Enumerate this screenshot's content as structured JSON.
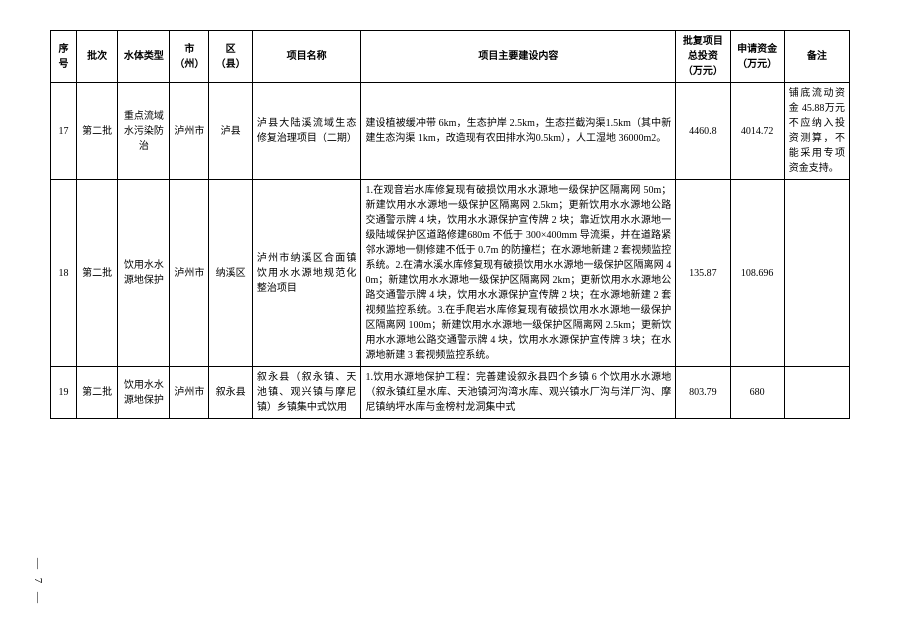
{
  "columns": {
    "c0": "序号",
    "c1": "批次",
    "c2": "水体类型",
    "c3": "市（州）",
    "c4": "区（县）",
    "c5": "项目名称",
    "c6": "项目主要建设内容",
    "c7": "批复项目总投资（万元）",
    "c8": "申请资金（万元）",
    "c9": "备注"
  },
  "rows": [
    {
      "seq": "17",
      "batch": "第二批",
      "water_type": "重点流域水污染防治",
      "city": "泸州市",
      "county": "泸县",
      "name": "泸县大陆溪流域生态修复治理项目（二期）",
      "content": "建设植被缓冲带 6km，生态护岸 2.5km，生态拦截沟渠1.5km（其中新建生态沟渠 1km，改造现有农田排水沟0.5km），人工湿地 36000m2。",
      "invest": "4460.8",
      "apply": "4014.72",
      "remark": "铺底流动资金 45.88万元不应纳入投资测算，不能采用专项资金支持。"
    },
    {
      "seq": "18",
      "batch": "第二批",
      "water_type": "饮用水水源地保护",
      "city": "泸州市",
      "county": "纳溪区",
      "name": "泸州市纳溪区合面镇饮用水水源地规范化整治项目",
      "content": "1.在观音岩水库修复现有破损饮用水水源地一级保护区隔离网 50m；新建饮用水水源地一级保护区隔离网 2.5km；更新饮用水水源地公路交通警示牌 4 块，饮用水水源保护宣传牌 2 块；靠近饮用水水源地一级陆域保护区道路修建680m 不低于 300×400mm 导流渠，并在道路紧邻水源地一侧修建不低于 0.7m 的防撞栏；在水源地新建 2 套视频监控系统。2.在清水溪水库修复现有破损饮用水水源地一级保护区隔离网 40m；新建饮用水水源地一级保护区隔离网 2km；更新饮用水水源地公路交通警示牌 4 块，饮用水水源保护宣传牌 2 块；在水源地新建 2 套视频监控系统。3.在手爬岩水库修复现有破损饮用水水源地一级保护区隔离网 100m；新建饮用水水源地一级保护区隔离网 2.5km；更新饮用水水源地公路交通警示牌 4 块，饮用水水源保护宣传牌 3 块；在水源地新建 3 套视频监控系统。",
      "invest": "135.87",
      "apply": "108.696",
      "remark": ""
    },
    {
      "seq": "19",
      "batch": "第二批",
      "water_type": "饮用水水源地保护",
      "city": "泸州市",
      "county": "叙永县",
      "name": "叙永县（叙永镇、天池镇、观兴镇与摩尼镇）乡镇集中式饮用",
      "content": "1.饮用水源地保护工程：完善建设叙永县四个乡镇 6 个饮用水水源地（叙永镇红星水库、天池镇河沟湾水库、观兴镇水厂沟与洋厂沟、摩尼镇纳坪水库与金榜村龙洞集中式",
      "invest": "803.79",
      "apply": "680",
      "remark": ""
    }
  ],
  "page_number": "— 7 —",
  "col_widths": {
    "c0": 24,
    "c1": 38,
    "c2": 48,
    "c3": 36,
    "c4": 40,
    "c5": 100,
    "c6": 290,
    "c7": 50,
    "c8": 50,
    "c9": 60
  }
}
